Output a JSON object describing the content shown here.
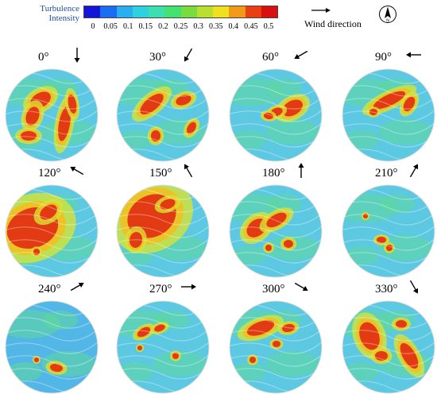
{
  "legend": {
    "title_line1": "Turbulence",
    "title_line2": "Intensity",
    "ticks": [
      "0",
      "0.05",
      "0.1",
      "0.15",
      "0.2",
      "0.25",
      "0.3",
      "0.35",
      "0.4",
      "0.45",
      "0.5"
    ],
    "colors": [
      "#1515d8",
      "#1a6cf0",
      "#2aaef0",
      "#2fd0e0",
      "#3ce0b0",
      "#44e070",
      "#78dc3c",
      "#b8e030",
      "#f0e020",
      "#f09a18",
      "#e84010",
      "#d81010"
    ]
  },
  "wind_legend": {
    "label": "Wind direction",
    "icon": "arrow-right-icon"
  },
  "north_icon": "north-arrow-icon",
  "panels": [
    {
      "angle": "0°",
      "deg": 0
    },
    {
      "angle": "30°",
      "deg": 30
    },
    {
      "angle": "60°",
      "deg": 60
    },
    {
      "angle": "90°",
      "deg": 90
    },
    {
      "angle": "120°",
      "deg": 120
    },
    {
      "angle": "150°",
      "deg": 150
    },
    {
      "angle": "180°",
      "deg": 180
    },
    {
      "angle": "210°",
      "deg": 210
    },
    {
      "angle": "240°",
      "deg": 240
    },
    {
      "angle": "270°",
      "deg": 270
    },
    {
      "angle": "300°",
      "deg": 300
    },
    {
      "angle": "330°",
      "deg": 330
    }
  ]
}
